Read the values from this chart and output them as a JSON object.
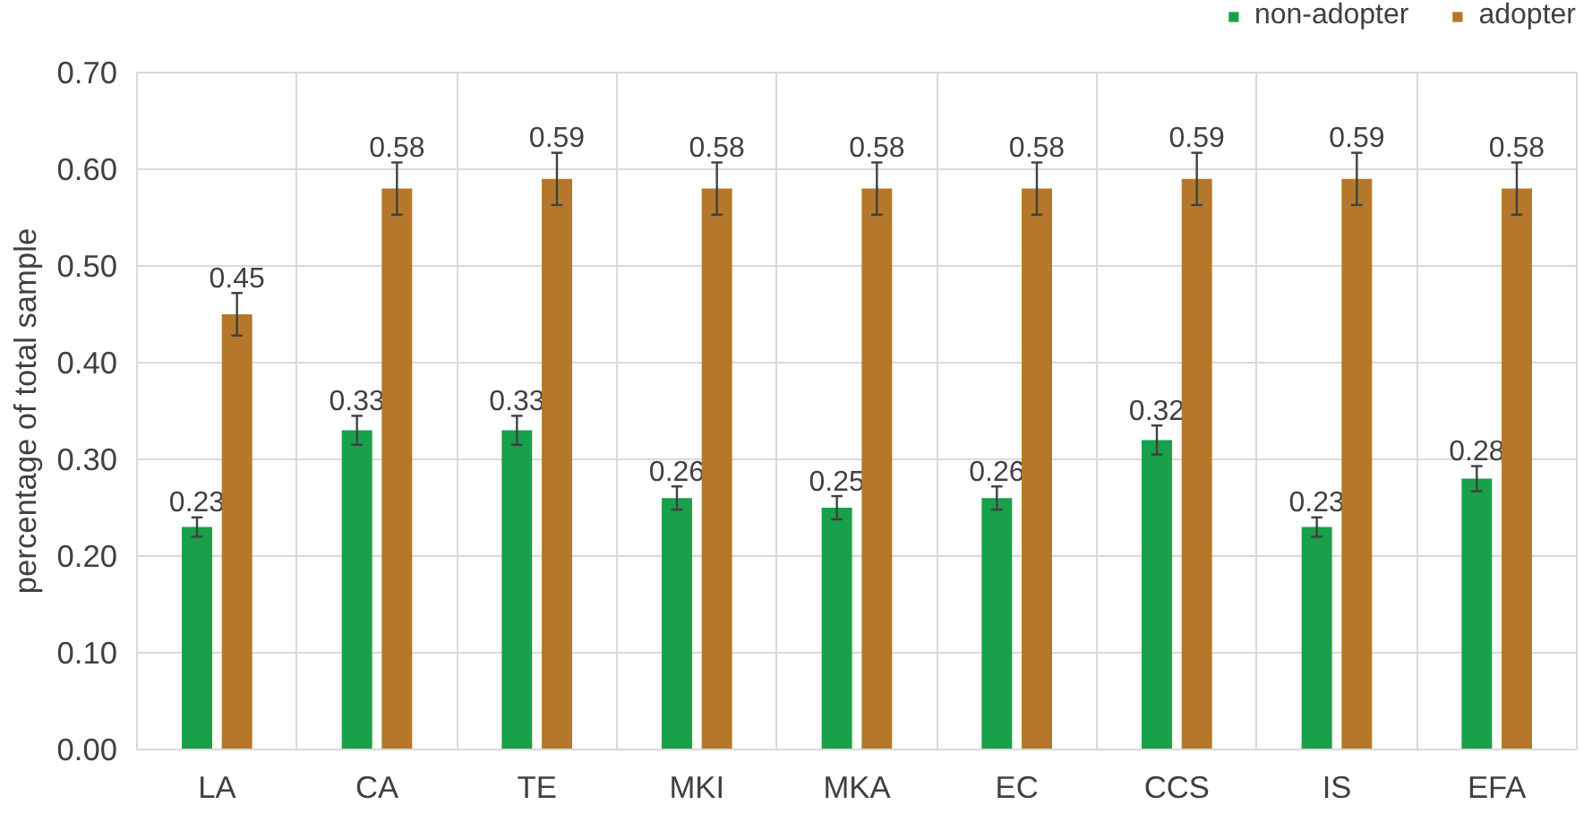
{
  "chart_data": {
    "type": "bar",
    "ylabel": "percentage of total sample",
    "categories": [
      "LA",
      "CA",
      "TE",
      "MKI",
      "MKA",
      "EC",
      "CCS",
      "IS",
      "EFA"
    ],
    "series": [
      {
        "name": "non-adopter",
        "color": "#19a04a",
        "values": [
          0.23,
          0.33,
          0.33,
          0.26,
          0.25,
          0.26,
          0.32,
          0.23,
          0.28
        ],
        "errors": [
          0.01,
          0.015,
          0.015,
          0.012,
          0.012,
          0.012,
          0.015,
          0.01,
          0.013
        ]
      },
      {
        "name": "adopter",
        "color": "#b5782a",
        "values": [
          0.45,
          0.58,
          0.59,
          0.58,
          0.58,
          0.58,
          0.59,
          0.59,
          0.58
        ],
        "errors": [
          0.022,
          0.027,
          0.027,
          0.027,
          0.027,
          0.027,
          0.027,
          0.027,
          0.027
        ]
      }
    ],
    "ylim": [
      0,
      0.7
    ],
    "yticks": [
      {
        "value": 0,
        "label": "0.00"
      },
      {
        "value": 0.1,
        "label": "0.10"
      },
      {
        "value": 0.2,
        "label": "0.20"
      },
      {
        "value": 0.3,
        "label": "0.30"
      },
      {
        "value": 0.4,
        "label": "0.40"
      },
      {
        "value": 0.5,
        "label": "0.50"
      },
      {
        "value": 0.6,
        "label": "0.60"
      },
      {
        "value": 0.7,
        "label": "0.70"
      }
    ],
    "grid": true,
    "legend": "top right",
    "data_labels": true
  }
}
